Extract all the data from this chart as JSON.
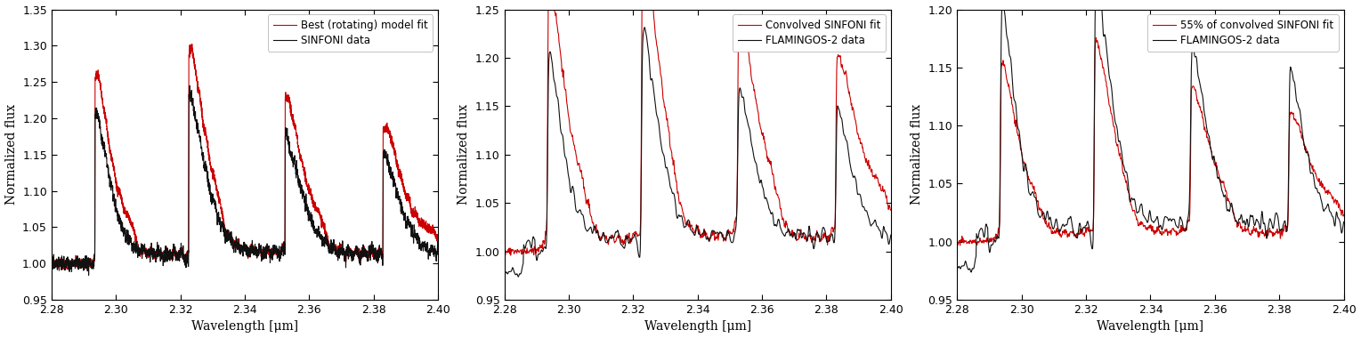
{
  "xlim": [
    2.28,
    2.4
  ],
  "xticks": [
    2.28,
    2.3,
    2.32,
    2.34,
    2.36,
    2.38,
    2.4
  ],
  "xlabel": "Wavelength [μm]",
  "ylabel": "Normalized flux",
  "panels": [
    {
      "ylim": [
        0.95,
        1.35
      ],
      "yticks": [
        0.95,
        1.0,
        1.05,
        1.1,
        1.15,
        1.2,
        1.25,
        1.3,
        1.35
      ],
      "legend": [
        "SINFONI data",
        "Best (rotating) model fit"
      ],
      "data_color": "#111111",
      "model_color": "#cc0000"
    },
    {
      "ylim": [
        0.95,
        1.25
      ],
      "yticks": [
        0.95,
        1.0,
        1.05,
        1.1,
        1.15,
        1.2,
        1.25
      ],
      "legend": [
        "FLAMINGOS-2 data",
        "Convolved SINFONI fit"
      ],
      "data_color": "#111111",
      "model_color": "#cc0000"
    },
    {
      "ylim": [
        0.95,
        1.2
      ],
      "yticks": [
        0.95,
        1.0,
        1.05,
        1.1,
        1.15,
        1.2
      ],
      "legend": [
        "FLAMINGOS-2 data",
        "55% of convolved SINFONI fit"
      ],
      "data_color": "#111111",
      "model_color": "#cc0000"
    }
  ],
  "line_width": 0.8,
  "figsize": [
    15.29,
    3.8
  ],
  "dpi": 100
}
